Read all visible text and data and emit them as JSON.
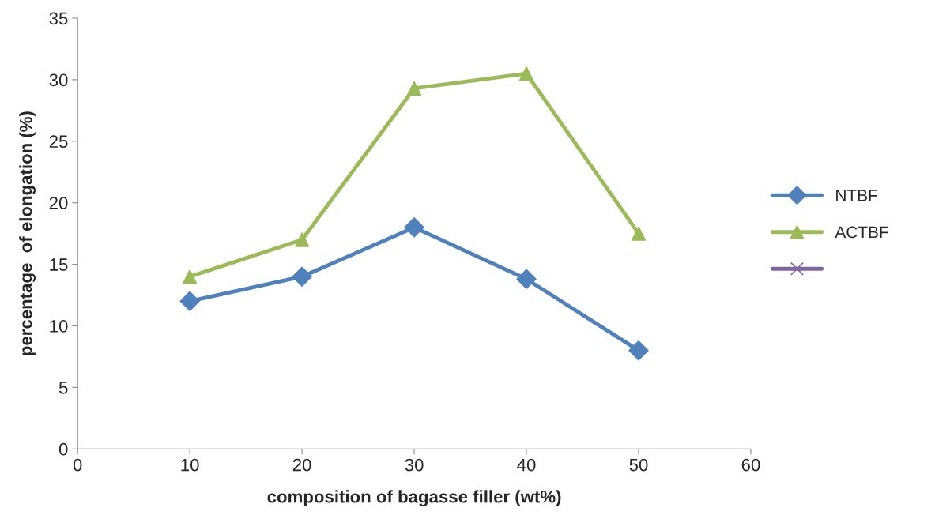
{
  "chart_data": {
    "type": "line",
    "xlabel": "composition of bagasse filler (wt%)",
    "ylabel": "percentage  of elongation (%)",
    "x": [
      10,
      20,
      30,
      40,
      50
    ],
    "series": [
      {
        "name": "NTBF",
        "color": "#4f81bd",
        "marker": "diamond",
        "values": [
          12,
          14,
          18,
          13.8,
          8
        ]
      },
      {
        "name": "ACTBF",
        "color": "#9bbb59",
        "marker": "triangle",
        "values": [
          14,
          17,
          29.3,
          30.5,
          17.5
        ]
      },
      {
        "color": "#8064a2",
        "marker": "cross",
        "values": [
          null,
          null,
          null,
          null,
          null
        ]
      }
    ],
    "xlim": [
      0,
      60
    ],
    "xticks": [
      0,
      10,
      20,
      30,
      40,
      50,
      60
    ],
    "ylim": [
      0,
      35
    ],
    "yticks": [
      0,
      5,
      10,
      15,
      20,
      25,
      30,
      35
    ],
    "grid": false,
    "legend": "right",
    "line_style": "solid"
  }
}
